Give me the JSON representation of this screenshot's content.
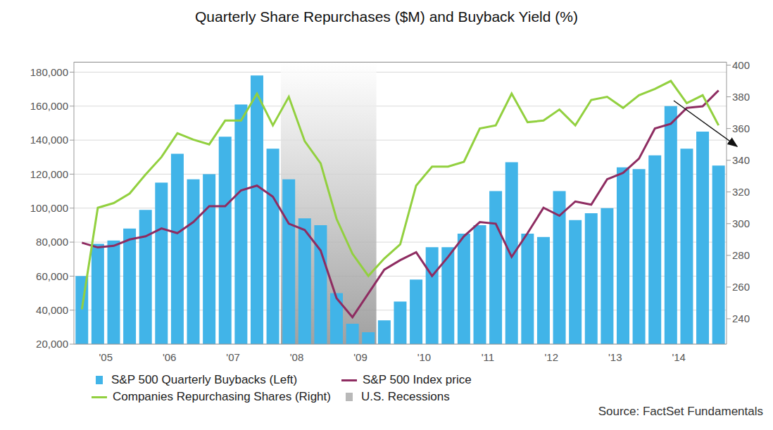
{
  "chart_data": {
    "type": "combo",
    "title": "Quarterly Share Repurchases ($M) and Buyback Yield (%)",
    "source": "Source: FactSet Fundamentals",
    "categories": [
      null,
      null,
      "'05",
      null,
      null,
      null,
      "'06",
      null,
      null,
      null,
      "'07",
      null,
      null,
      null,
      "'08",
      null,
      null,
      null,
      "'09",
      null,
      null,
      null,
      "'10",
      null,
      null,
      null,
      "'11",
      null,
      null,
      null,
      "'12",
      null,
      null,
      null,
      "'13",
      null,
      null,
      null,
      "'14",
      null,
      null
    ],
    "series": [
      {
        "name": "S&P 500 Quarterly Buybacks (Left)",
        "type": "bar",
        "color": "#41b4e8",
        "values": [
          60000,
          79000,
          81000,
          88000,
          99000,
          115000,
          132000,
          117000,
          120000,
          142000,
          161000,
          178000,
          135000,
          117000,
          94000,
          90000,
          50000,
          32000,
          27000,
          34000,
          45000,
          58000,
          77000,
          77000,
          85000,
          90000,
          110000,
          127000,
          85000,
          83000,
          110000,
          93000,
          97000,
          100000,
          124000,
          123000,
          131000,
          160000,
          135000,
          145000,
          125000
        ]
      },
      {
        "name": "S&P 500 Index price",
        "type": "line",
        "axis": "y2",
        "color": "#8e2c61",
        "values": [
          288,
          285,
          286,
          290,
          292,
          297,
          294,
          301,
          311,
          311,
          321,
          324,
          317,
          300,
          296,
          283,
          253,
          241,
          256,
          271,
          277,
          282,
          267,
          279,
          292,
          301,
          300,
          279,
          294,
          310,
          305,
          314,
          312,
          328,
          332,
          341,
          360,
          363,
          373,
          374,
          384
        ]
      },
      {
        "name": "Companies Repurchasing Shares (Right)",
        "type": "line",
        "axis": "y2",
        "color": "#92d03f",
        "values": [
          246,
          310,
          313,
          319,
          331,
          342,
          357,
          353,
          350,
          365,
          365,
          382,
          362,
          380,
          352,
          338,
          303,
          281,
          267,
          278,
          287,
          324,
          336,
          336,
          339,
          360,
          362,
          382,
          364,
          365,
          372,
          362,
          378,
          380,
          373,
          381,
          385,
          390,
          376,
          381,
          362
        ]
      }
    ],
    "recessions": [
      {
        "name": "U.S. Recessions",
        "start": 13,
        "end": 18,
        "color": "#8a8a8a"
      }
    ],
    "ylim": [
      20000,
      186000
    ],
    "yticks": [
      {
        "value": 20000,
        "label": "20,000"
      },
      {
        "value": 40000,
        "label": "40,000"
      },
      {
        "value": 60000,
        "label": "60,000"
      },
      {
        "value": 80000,
        "label": "80,000"
      },
      {
        "value": 100000,
        "label": "100,000"
      },
      {
        "value": 120000,
        "label": "120,000"
      },
      {
        "value": 140000,
        "label": "140,000"
      },
      {
        "value": 160000,
        "label": "160,000"
      },
      {
        "value": 180000,
        "label": "180,000"
      }
    ],
    "y2lim": [
      224,
      402
    ],
    "y2ticks": [
      240,
      260,
      280,
      300,
      320,
      340,
      360,
      380,
      400
    ],
    "grid": true,
    "legend": "bottom"
  }
}
